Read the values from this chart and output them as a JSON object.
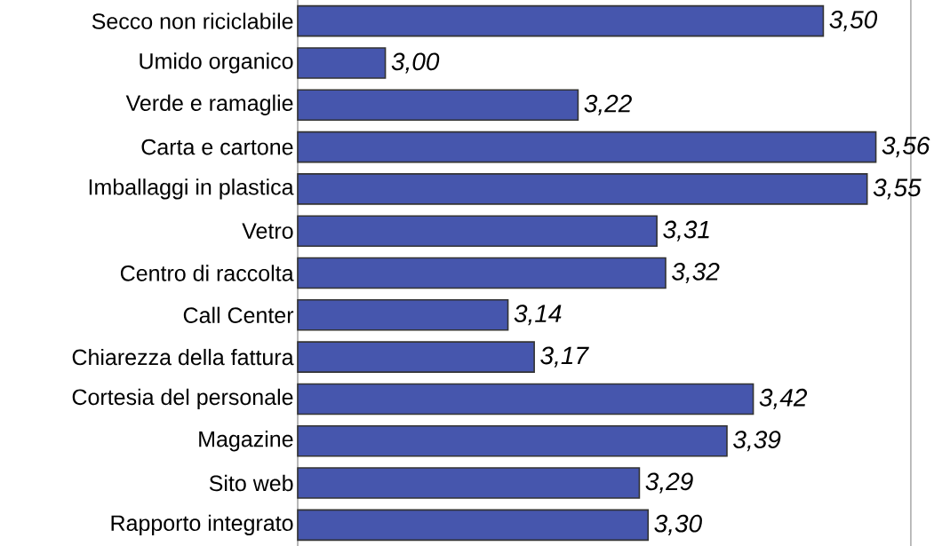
{
  "chart_data": {
    "type": "bar",
    "orientation": "horizontal",
    "categories": [
      "Secco non riciclabile",
      "Umido organico",
      "Verde e ramaglie",
      "Carta e cartone",
      "Imballaggi in plastica",
      "Vetro",
      "Centro di raccolta",
      "Call Center",
      "Chiarezza della fattura",
      "Cortesia del personale",
      "Magazine",
      "Sito web",
      "Rapporto integrato"
    ],
    "values": [
      3.5,
      3.0,
      3.22,
      3.56,
      3.55,
      3.31,
      3.32,
      3.14,
      3.17,
      3.42,
      3.39,
      3.29,
      3.3
    ],
    "value_labels": [
      "3,50",
      "3,00",
      "3,22",
      "3,56",
      "3,55",
      "3,31",
      "3,32",
      "3,14",
      "3,17",
      "3,42",
      "3,39",
      "3,29",
      "3,30"
    ],
    "color": "#4656ad",
    "xlim": [
      2.9,
      3.6
    ],
    "tick_labels": "y"
  }
}
